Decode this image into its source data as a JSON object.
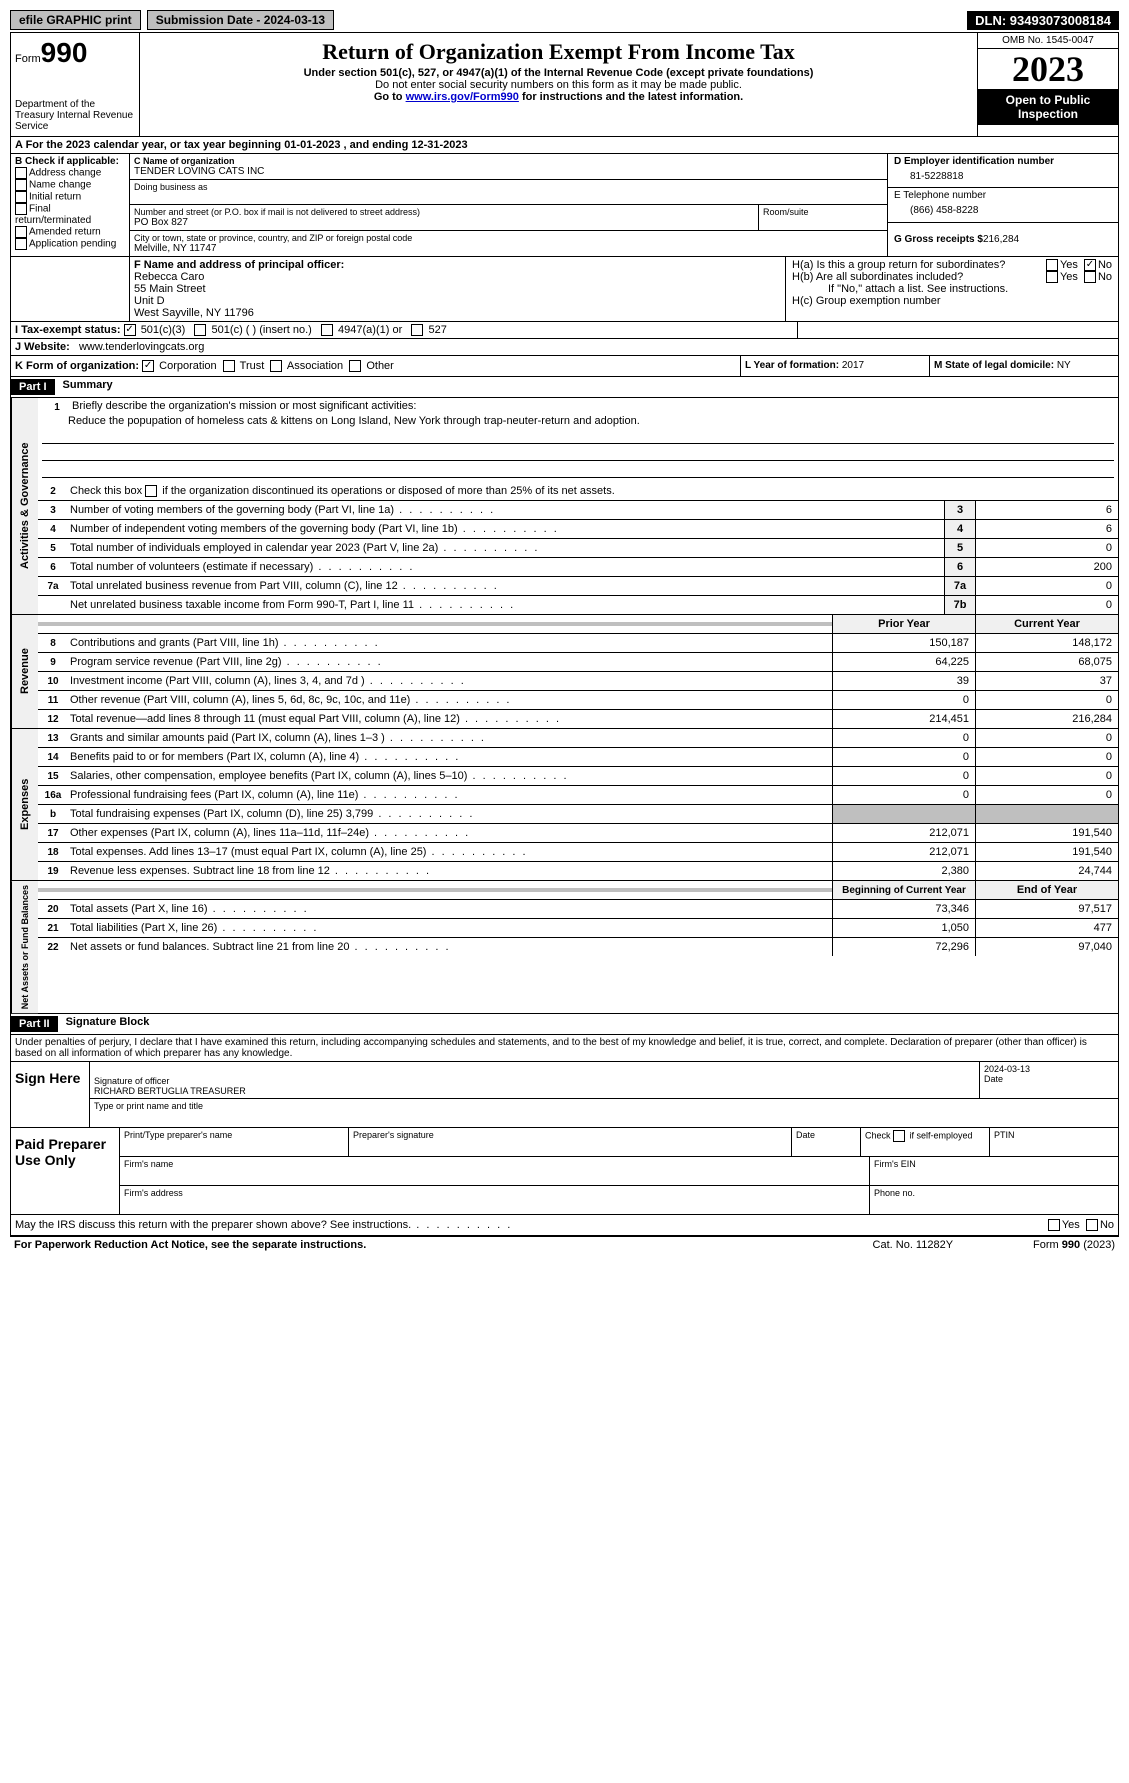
{
  "top": {
    "efile": "efile GRAPHIC print",
    "submission": "Submission Date - 2024-03-13",
    "dln": "DLN: 93493073008184"
  },
  "header": {
    "form_label": "Form",
    "form_no": "990",
    "dept": "Department of the Treasury Internal Revenue Service",
    "title": "Return of Organization Exempt From Income Tax",
    "sub1": "Under section 501(c), 527, or 4947(a)(1) of the Internal Revenue Code (except private foundations)",
    "sub2": "Do not enter social security numbers on this form as it may be made public.",
    "sub3_pre": "Go to ",
    "sub3_link": "www.irs.gov/Form990",
    "sub3_post": " for instructions and the latest information.",
    "omb": "OMB No. 1545-0047",
    "year": "2023",
    "open": "Open to Public Inspection"
  },
  "row_a": "A For the 2023 calendar year, or tax year beginning 01-01-2023   , and ending 12-31-2023",
  "b": {
    "label": "B Check if applicable:",
    "opts": [
      "Address change",
      "Name change",
      "Initial return",
      "Final return/terminated",
      "Amended return",
      "Application pending"
    ]
  },
  "c": {
    "name_label": "C Name of organization",
    "name": "TENDER LOVING CATS INC",
    "dba_label": "Doing business as",
    "addr_label": "Number and street (or P.O. box if mail is not delivered to street address)",
    "addr": "PO Box 827",
    "room_label": "Room/suite",
    "city_label": "City or town, state or province, country, and ZIP or foreign postal code",
    "city": "Melville, NY  11747"
  },
  "d": {
    "ein_label": "D Employer identification number",
    "ein": "81-5228818",
    "tel_label": "E Telephone number",
    "tel": "(866) 458-8228",
    "gross_label": "G Gross receipts $",
    "gross": "216,284"
  },
  "f": {
    "label": "F  Name and address of principal officer:",
    "l1": "Rebecca Caro",
    "l2": "55 Main Street",
    "l3": "Unit D",
    "l4": "West Sayville, NY  11796"
  },
  "h": {
    "a": "H(a)  Is this a group return for subordinates?",
    "b": "H(b)  Are all subordinates included?",
    "note": "If \"No,\" attach a list. See instructions.",
    "c": "H(c)  Group exemption number"
  },
  "i": {
    "label": "I  Tax-exempt status:",
    "o1": "501(c)(3)",
    "o2": "501(c) (  ) (insert no.)",
    "o3": "4947(a)(1) or",
    "o4": "527"
  },
  "j": {
    "label": "J  Website:",
    "val": "www.tenderlovingcats.org"
  },
  "k": {
    "label": "K Form of organization:",
    "o1": "Corporation",
    "o2": "Trust",
    "o3": "Association",
    "o4": "Other"
  },
  "l": {
    "label": "L Year of formation:",
    "val": "2017"
  },
  "m": {
    "label": "M State of legal domicile:",
    "val": "NY"
  },
  "part1": {
    "header": "Part I",
    "title": "Summary",
    "mission_label": "Briefly describe the organization's mission or most significant activities:",
    "mission": "Reduce the popupation of homeless cats & kittens on Long Island, New York through trap-neuter-return and adoption.",
    "line2": "Check this box       if the organization discontinued its operations or disposed of more than 25% of its net assets.",
    "lines_single": [
      {
        "n": "3",
        "d": "Number of voting members of the governing body (Part VI, line 1a)",
        "b": "3",
        "v": "6"
      },
      {
        "n": "4",
        "d": "Number of independent voting members of the governing body (Part VI, line 1b)",
        "b": "4",
        "v": "6"
      },
      {
        "n": "5",
        "d": "Total number of individuals employed in calendar year 2023 (Part V, line 2a)",
        "b": "5",
        "v": "0"
      },
      {
        "n": "6",
        "d": "Total number of volunteers (estimate if necessary)",
        "b": "6",
        "v": "200"
      },
      {
        "n": "7a",
        "d": "Total unrelated business revenue from Part VIII, column (C), line 12",
        "b": "7a",
        "v": "0"
      },
      {
        "n": "",
        "d": "Net unrelated business taxable income from Form 990-T, Part I, line 11",
        "b": "7b",
        "v": "0"
      }
    ],
    "col_prior": "Prior Year",
    "col_current": "Current Year",
    "revenue": [
      {
        "n": "8",
        "d": "Contributions and grants (Part VIII, line 1h)",
        "p": "150,187",
        "c": "148,172"
      },
      {
        "n": "9",
        "d": "Program service revenue (Part VIII, line 2g)",
        "p": "64,225",
        "c": "68,075"
      },
      {
        "n": "10",
        "d": "Investment income (Part VIII, column (A), lines 3, 4, and 7d )",
        "p": "39",
        "c": "37"
      },
      {
        "n": "11",
        "d": "Other revenue (Part VIII, column (A), lines 5, 6d, 8c, 9c, 10c, and 11e)",
        "p": "0",
        "c": "0"
      },
      {
        "n": "12",
        "d": "Total revenue—add lines 8 through 11 (must equal Part VIII, column (A), line 12)",
        "p": "214,451",
        "c": "216,284"
      }
    ],
    "expenses": [
      {
        "n": "13",
        "d": "Grants and similar amounts paid (Part IX, column (A), lines 1–3 )",
        "p": "0",
        "c": "0"
      },
      {
        "n": "14",
        "d": "Benefits paid to or for members (Part IX, column (A), line 4)",
        "p": "0",
        "c": "0"
      },
      {
        "n": "15",
        "d": "Salaries, other compensation, employee benefits (Part IX, column (A), lines 5–10)",
        "p": "0",
        "c": "0"
      },
      {
        "n": "16a",
        "d": "Professional fundraising fees (Part IX, column (A), line 11e)",
        "p": "0",
        "c": "0"
      },
      {
        "n": "b",
        "d": "Total fundraising expenses (Part IX, column (D), line 25) 3,799",
        "p": "",
        "c": "",
        "shaded": true
      },
      {
        "n": "17",
        "d": "Other expenses (Part IX, column (A), lines 11a–11d, 11f–24e)",
        "p": "212,071",
        "c": "191,540"
      },
      {
        "n": "18",
        "d": "Total expenses. Add lines 13–17 (must equal Part IX, column (A), line 25)",
        "p": "212,071",
        "c": "191,540"
      },
      {
        "n": "19",
        "d": "Revenue less expenses. Subtract line 18 from line 12",
        "p": "2,380",
        "c": "24,744"
      }
    ],
    "col_begin": "Beginning of Current Year",
    "col_end": "End of Year",
    "netassets": [
      {
        "n": "20",
        "d": "Total assets (Part X, line 16)",
        "p": "73,346",
        "c": "97,517"
      },
      {
        "n": "21",
        "d": "Total liabilities (Part X, line 26)",
        "p": "1,050",
        "c": "477"
      },
      {
        "n": "22",
        "d": "Net assets or fund balances. Subtract line 21 from line 20",
        "p": "72,296",
        "c": "97,040"
      }
    ]
  },
  "part2": {
    "header": "Part II",
    "title": "Signature Block",
    "perjury": "Under penalties of perjury, I declare that I have examined this return, including accompanying schedules and statements, and to the best of my knowledge and belief, it is true, correct, and complete. Declaration of preparer (other than officer) is based on all information of which preparer has any knowledge.",
    "sign_here": "Sign Here",
    "sig_officer": "Signature of officer",
    "officer": "RICHARD BERTUGLIA  TREASURER",
    "type_title": "Type or print name and title",
    "date_label": "Date",
    "date": "2024-03-13",
    "paid": "Paid Preparer Use Only",
    "print_name": "Print/Type preparer's name",
    "prep_sig": "Preparer's signature",
    "check_self": "Check        if self-employed",
    "ptin": "PTIN",
    "firm_name": "Firm's name",
    "firm_ein": "Firm's EIN",
    "firm_addr": "Firm's address",
    "phone": "Phone no.",
    "may_discuss": "May the IRS discuss this return with the preparer shown above? See instructions."
  },
  "footer": {
    "left": "For Paperwork Reduction Act Notice, see the separate instructions.",
    "center": "Cat. No. 11282Y",
    "right": "Form 990 (2023)"
  },
  "labels": {
    "activities": "Activities & Governance",
    "revenue": "Revenue",
    "expenses": "Expenses",
    "netassets": "Net Assets or Fund Balances"
  },
  "yes": "Yes",
  "no": "No"
}
